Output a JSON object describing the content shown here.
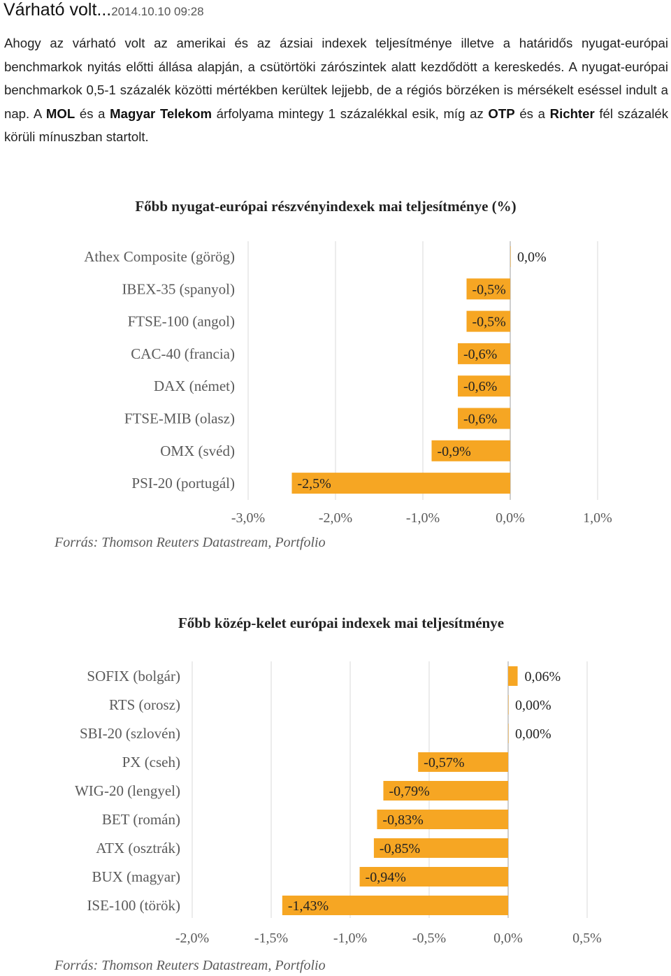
{
  "header": {
    "title": "Várható volt...",
    "timestamp": "2014.10.10 09:28"
  },
  "article": {
    "p1": "Ahogy az várható volt az amerikai és az ázsiai indexek teljesítménye illetve a határidős nyugat-európai benchmarkok nyitás előtti állása alapján, a csütörtöki zárószintek alatt kezdődött a kereskedés. A nyugat-európai benchmarkok 0,5-1 százalék közötti mértékben kerültek lejjebb, de a régiós börzéken is mérsékelt eséssel indult a nap. A ",
    "mol": "MOL",
    "p2": " és a ",
    "telekom": "Magyar Telekom",
    "p3": " árfolyama mintegy 1 százalékkal esik, míg az ",
    "otp": "OTP",
    "p4": " és a ",
    "richter": "Richter",
    "p5": " fél százalék körüli mínuszban startolt."
  },
  "colors": {
    "bar": "#F6A623",
    "grid": "#d9d9d9",
    "axis": "#bfbfbf"
  },
  "chart_data": [
    {
      "type": "bar",
      "orientation": "horizontal",
      "title": "Főbb nyugat-európai részvényindexek mai teljesítménye (%)",
      "categories": [
        "Athex Composite (görög)",
        "IBEX-35 (spanyol)",
        "FTSE-100 (angol)",
        "CAC-40 (francia)",
        "DAX (német)",
        "FTSE-MIB (olasz)",
        "OMX (svéd)",
        "PSI-20 (portugál)"
      ],
      "values": [
        0.0,
        -0.5,
        -0.5,
        -0.6,
        -0.6,
        -0.6,
        -0.9,
        -2.5
      ],
      "value_labels": [
        "0,0%",
        "-0,5%",
        "-0,5%",
        "-0,6%",
        "-0,6%",
        "-0,6%",
        "-0,9%",
        "-2,5%"
      ],
      "xlim": [
        -3.0,
        1.0
      ],
      "ticks": [
        -3.0,
        -2.0,
        -1.0,
        0.0,
        1.0
      ],
      "tick_labels": [
        "-3,0%",
        "-2,0%",
        "-1,0%",
        "0,0%",
        "1,0%"
      ],
      "grid": true,
      "source": "Forrás: Thomson Reuters Datastream, Portfolio"
    },
    {
      "type": "bar",
      "orientation": "horizontal",
      "title": "Főbb közép-kelet európai indexek mai teljesítménye",
      "categories": [
        "SOFIX (bolgár)",
        "RTS (orosz)",
        "SBI-20 (szlovén)",
        "PX (cseh)",
        "WIG-20 (lengyel)",
        "BET (román)",
        "ATX (osztrák)",
        "BUX (magyar)",
        "ISE-100 (török)"
      ],
      "values": [
        0.06,
        0.0,
        0.0,
        -0.57,
        -0.79,
        -0.83,
        -0.85,
        -0.94,
        -1.43
      ],
      "value_labels": [
        "0,06%",
        "0,00%",
        "0,00%",
        "-0,57%",
        "-0,79%",
        "-0,83%",
        "-0,85%",
        "-0,94%",
        "-1,43%"
      ],
      "xlim": [
        -2.0,
        0.5
      ],
      "ticks": [
        -2.0,
        -1.5,
        -1.0,
        -0.5,
        0.0,
        0.5
      ],
      "tick_labels": [
        "-2,0%",
        "-1,5%",
        "-1,0%",
        "-0,5%",
        "0,0%",
        "0,5%"
      ],
      "grid": true,
      "source": "Forrás: Thomson Reuters Datastream, Portfolio"
    }
  ]
}
